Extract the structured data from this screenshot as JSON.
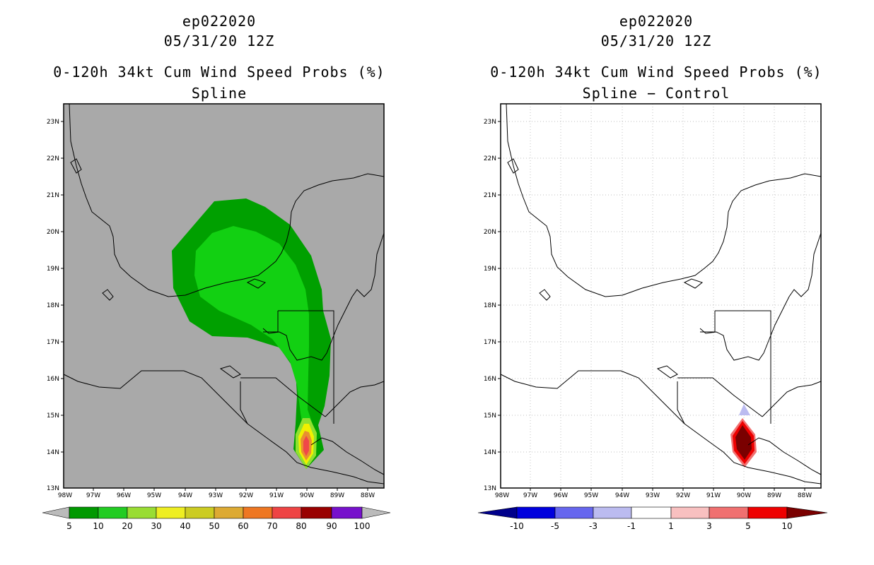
{
  "colors": {
    "land_bg_left": "#a9a9a9",
    "green_dark": "#00a000",
    "green_mid": "#10d010",
    "green_light": "#8fe030",
    "yellow": "#f0f000",
    "orange": "#e89030",
    "red": "#f04848",
    "dark_red": "#8b0000"
  },
  "left_panel": {
    "storm": "ep022020",
    "datetime": "05/31/20 12Z",
    "title": "0-120h 34kt Cum Wind Speed Probs (%)",
    "subtitle": "Spline",
    "colorbar_labels": [
      "5",
      "10",
      "20",
      "30",
      "40",
      "50",
      "60",
      "70",
      "80",
      "90",
      "100"
    ],
    "colorbar_colors": [
      "#009900",
      "#22cc22",
      "#99dd33",
      "#eeee22",
      "#cccc22",
      "#ddaa33",
      "#ee7722",
      "#ee4444",
      "#990000",
      "#7711cc"
    ]
  },
  "right_panel": {
    "storm": "ep022020",
    "datetime": "05/31/20 12Z",
    "title": "0-120h 34kt Cum Wind Speed Probs (%)",
    "subtitle": "Spline − Control",
    "colorbar_labels": [
      "-10",
      "-5",
      "-3",
      "-1",
      "1",
      "3",
      "5",
      "10"
    ],
    "colorbar_colors": [
      "#0000dd",
      "#6666ee",
      "#bbbbf0",
      "#ffffff",
      "#f8c0c0",
      "#f07070",
      "#ee0000"
    ]
  },
  "axes": {
    "lat_labels": [
      "23N",
      "22N",
      "21N",
      "20N",
      "19N",
      "18N",
      "17N",
      "16N",
      "15N",
      "14N",
      "13N"
    ],
    "lon_labels": [
      "98W",
      "97W",
      "96W",
      "95W",
      "94W",
      "93W",
      "92W",
      "91W",
      "90W",
      "89W",
      "88W"
    ]
  }
}
